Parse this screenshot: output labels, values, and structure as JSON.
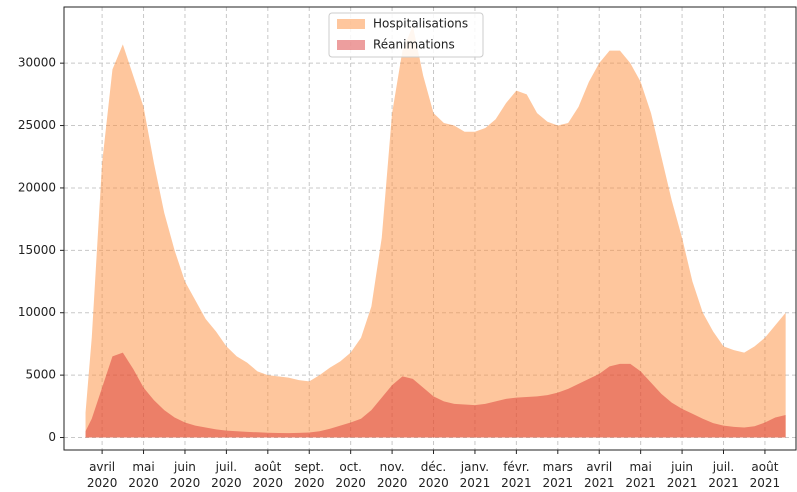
{
  "chart_data": {
    "type": "area",
    "x": [
      2.6,
      2.75,
      3,
      3.25,
      3.5,
      3.75,
      4,
      4.25,
      4.5,
      4.75,
      5,
      5.25,
      5.5,
      5.75,
      6,
      6.25,
      6.5,
      6.75,
      7,
      7.25,
      7.5,
      7.75,
      8,
      8.25,
      8.5,
      8.75,
      9,
      9.25,
      9.5,
      9.75,
      10,
      10.25,
      10.5,
      10.75,
      11,
      11.25,
      11.5,
      11.75,
      12,
      12.25,
      12.5,
      12.75,
      13,
      13.25,
      13.5,
      13.75,
      14,
      14.25,
      14.5,
      14.75,
      15,
      15.25,
      15.5,
      15.75,
      16,
      16.25,
      16.5,
      16.75,
      17,
      17.25,
      17.5,
      17.75,
      18,
      18.25,
      18.5,
      18.75,
      19,
      19.25,
      19.5
    ],
    "series": [
      {
        "name": "Hospitalisations",
        "color": "#fd8d3c",
        "values": [
          2000,
          8000,
          22000,
          29500,
          31500,
          29000,
          26500,
          22000,
          18000,
          15000,
          12500,
          11000,
          9500,
          8500,
          7300,
          6500,
          6000,
          5300,
          5000,
          4900,
          4800,
          4600,
          4500,
          5000,
          5600,
          6100,
          6800,
          8000,
          10500,
          16000,
          26000,
          31000,
          33000,
          29000,
          26000,
          25200,
          25000,
          24500,
          24500,
          24800,
          25500,
          26800,
          27800,
          27500,
          26000,
          25300,
          25000,
          25200,
          26500,
          28500,
          30000,
          31000,
          31000,
          30000,
          28500,
          26000,
          22500,
          19000,
          16000,
          12500,
          10000,
          8500,
          7300,
          7000,
          6800,
          7300,
          8000,
          9000,
          10000
        ]
      },
      {
        "name": "Réanimations",
        "color": "#d62728",
        "values": [
          500,
          1500,
          4000,
          6500,
          6800,
          5500,
          4000,
          3000,
          2200,
          1600,
          1200,
          950,
          800,
          650,
          550,
          500,
          450,
          420,
          380,
          360,
          350,
          370,
          400,
          500,
          700,
          950,
          1200,
          1500,
          2200,
          3200,
          4200,
          4900,
          4700,
          4000,
          3300,
          2900,
          2700,
          2650,
          2600,
          2700,
          2900,
          3100,
          3200,
          3250,
          3300,
          3400,
          3600,
          3900,
          4300,
          4700,
          5100,
          5700,
          5900,
          5900,
          5300,
          4400,
          3500,
          2800,
          2300,
          1900,
          1500,
          1150,
          950,
          850,
          800,
          900,
          1200,
          1600,
          1800
        ]
      }
    ],
    "xlim": [
      2.08,
      19.75
    ],
    "xticks": [
      {
        "value": 3,
        "label": [
          "avril",
          "2020"
        ]
      },
      {
        "value": 4,
        "label": [
          "mai",
          "2020"
        ]
      },
      {
        "value": 5,
        "label": [
          "juin",
          "2020"
        ]
      },
      {
        "value": 6,
        "label": [
          "juil.",
          "2020"
        ]
      },
      {
        "value": 7,
        "label": [
          "août",
          "2020"
        ]
      },
      {
        "value": 8,
        "label": [
          "sept.",
          "2020"
        ]
      },
      {
        "value": 9,
        "label": [
          "oct.",
          "2020"
        ]
      },
      {
        "value": 10,
        "label": [
          "nov.",
          "2020"
        ]
      },
      {
        "value": 11,
        "label": [
          "déc.",
          "2020"
        ]
      },
      {
        "value": 12,
        "label": [
          "janv.",
          "2021"
        ]
      },
      {
        "value": 13,
        "label": [
          "févr.",
          "2021"
        ]
      },
      {
        "value": 14,
        "label": [
          "mars",
          "2021"
        ]
      },
      {
        "value": 15,
        "label": [
          "avril",
          "2021"
        ]
      },
      {
        "value": 16,
        "label": [
          "mai",
          "2021"
        ]
      },
      {
        "value": 17,
        "label": [
          "juin",
          "2021"
        ]
      },
      {
        "value": 18,
        "label": [
          "juil.",
          "2021"
        ]
      },
      {
        "value": 19,
        "label": [
          "août",
          "2021"
        ]
      }
    ],
    "ylim": [
      -1000,
      34500
    ],
    "yticks": [
      0,
      5000,
      10000,
      15000,
      20000,
      25000,
      30000
    ],
    "grid": true,
    "legend": "upper center"
  }
}
